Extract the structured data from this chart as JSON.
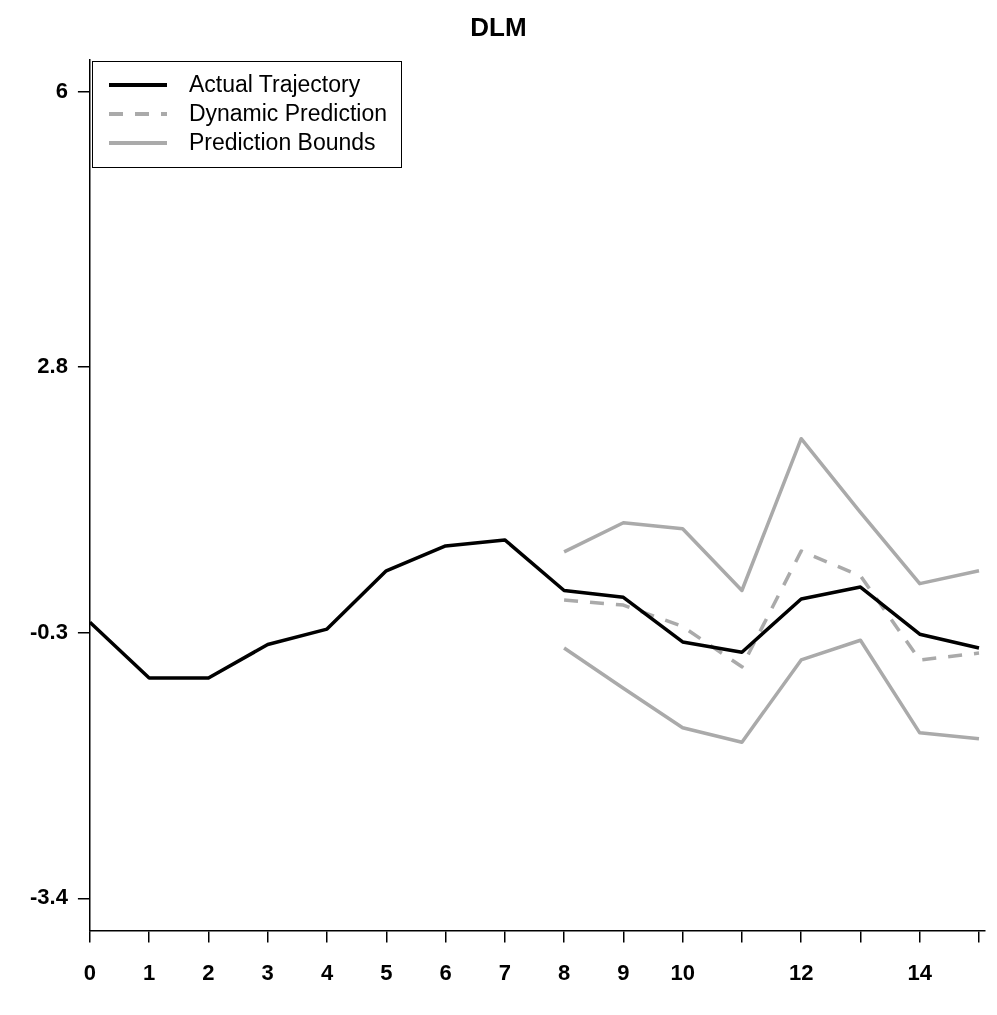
{
  "chart_data": {
    "type": "line",
    "title": "DLM",
    "xlim": [
      0,
      15.1
    ],
    "ylim": [
      -3.776,
      6.376
    ],
    "xticks": [
      0,
      1,
      2,
      3,
      4,
      5,
      6,
      7,
      8,
      9,
      10,
      {
        "value": 11,
        "label": null
      },
      12,
      {
        "value": 13,
        "label": null
      },
      14,
      {
        "value": 15,
        "label": null
      }
    ],
    "yticks": [
      -3.4,
      -0.3,
      2.8,
      6
    ],
    "grid": false,
    "legend": "top left",
    "marker": "none",
    "series": [
      {
        "name": "Actual Trajectory",
        "color": "#000000",
        "line_style": "solid",
        "x": [
          0,
          1,
          2,
          3,
          4,
          5,
          6,
          7,
          8,
          9,
          10,
          11,
          12,
          13,
          14,
          15
        ],
        "values": [
          -0.18,
          -0.83,
          -0.83,
          -0.44,
          -0.26,
          0.42,
          0.71,
          0.78,
          0.19,
          0.11,
          -0.41,
          -0.53,
          0.09,
          0.23,
          -0.32,
          -0.48
        ]
      },
      {
        "name": "Dynamic Prediction",
        "color": "#aaaaaa",
        "line_style": "dashed",
        "x": [
          8,
          9,
          10,
          11,
          12,
          13,
          14,
          15
        ],
        "values": [
          0.08,
          0.02,
          -0.23,
          -0.7,
          0.65,
          0.36,
          -0.62,
          -0.54
        ]
      },
      {
        "name": "Prediction Bounds",
        "color": "#aaaaaa",
        "line_style": "solid",
        "x": [
          8,
          9,
          10,
          11,
          12,
          13,
          14,
          15
        ],
        "values": [
          0.64,
          0.98,
          0.91,
          0.19,
          1.96,
          1.1,
          0.27,
          0.42
        ]
      },
      {
        "color": "#aaaaaa",
        "line_style": "solid",
        "x": [
          8,
          9,
          10,
          11,
          12,
          13,
          14,
          15
        ],
        "values": [
          -0.48,
          -0.95,
          -1.41,
          -1.58,
          -0.62,
          -0.39,
          -1.47,
          -1.54
        ]
      }
    ]
  }
}
